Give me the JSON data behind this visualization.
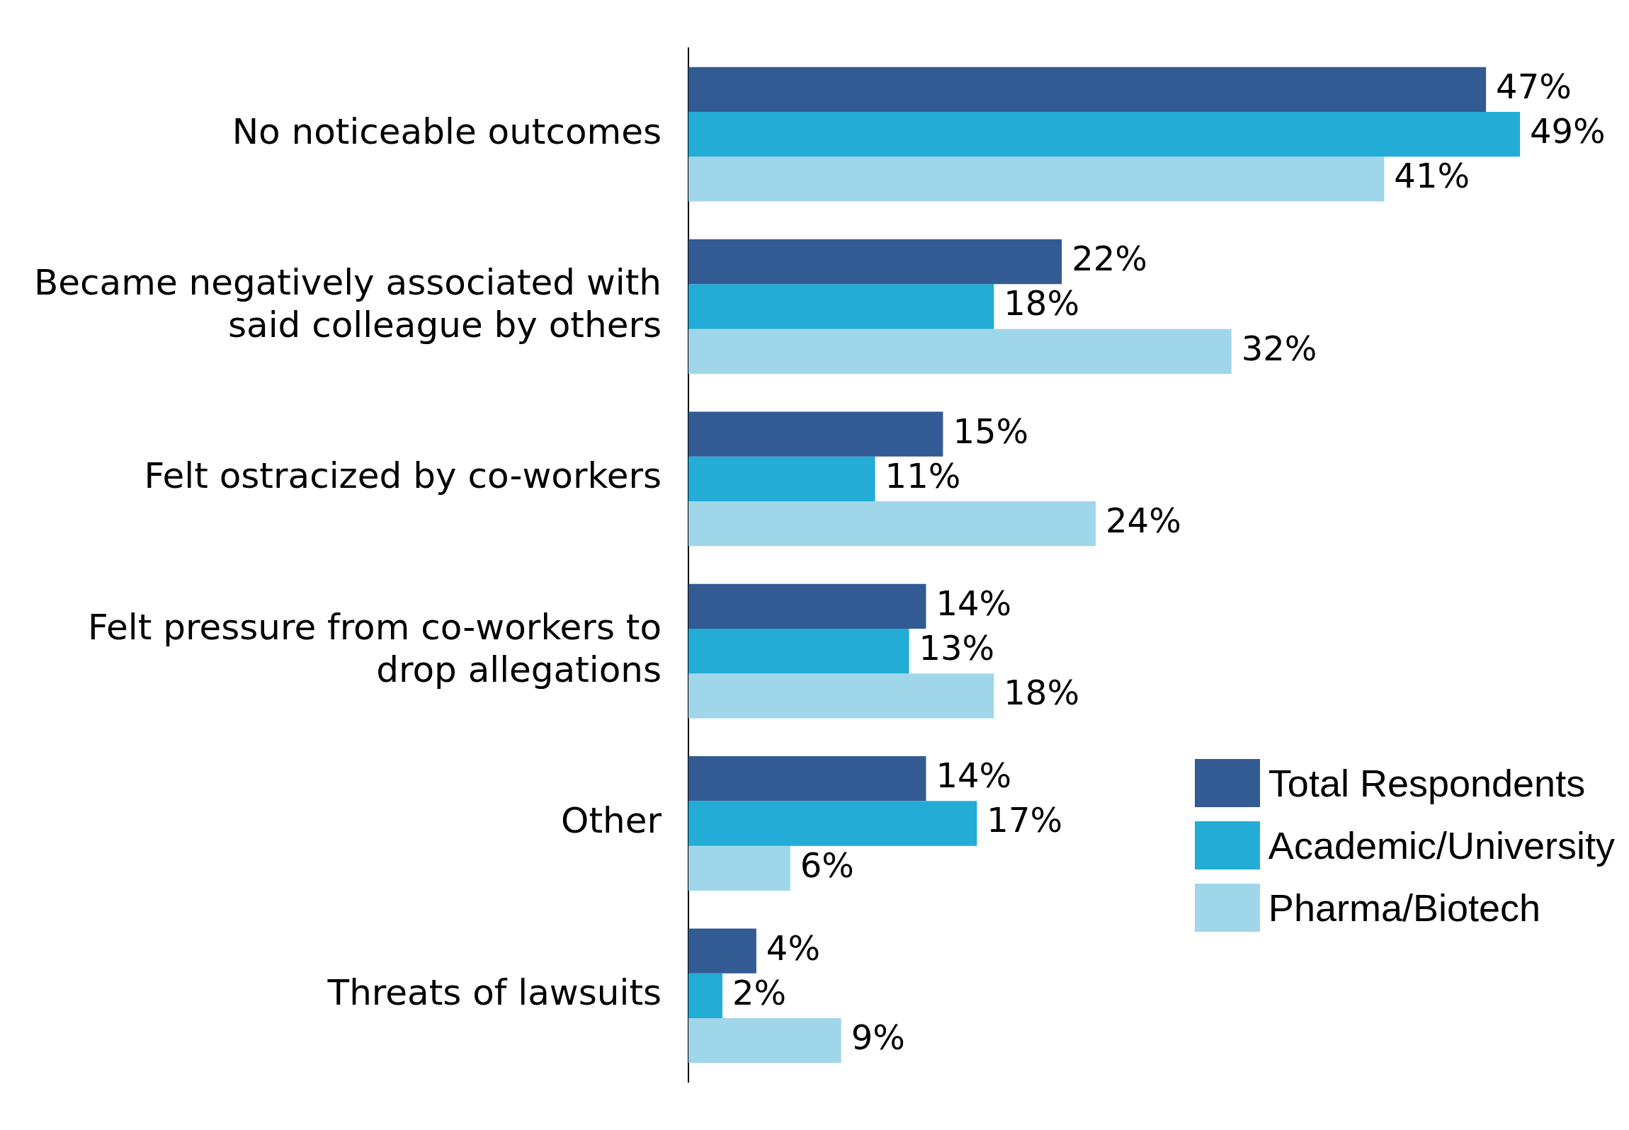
{
  "chart_data": {
    "type": "bar",
    "orientation": "horizontal",
    "categories": [
      "No noticeable outcomes",
      "Became negatively associated with said colleague by others",
      "Felt ostracized by co-workers",
      "Felt pressure from co-workers to drop allegations",
      "Other",
      "Threats of lawsuits"
    ],
    "series": [
      {
        "name": "Total Respondents",
        "color": "#325a93",
        "values": [
          47,
          22,
          15,
          14,
          14,
          4
        ],
        "value_labels": [
          "47%",
          "22%",
          "15%",
          "14%",
          "14%",
          "4%"
        ]
      },
      {
        "name": "Academic/University",
        "color": "#22acd6",
        "values": [
          49,
          18,
          11,
          13,
          17,
          2
        ],
        "value_labels": [
          "49%",
          "18%",
          "11%",
          "13%",
          "17%",
          "2%"
        ]
      },
      {
        "name": "Pharma/Biotech",
        "color": "#9fd6ea",
        "values": [
          41,
          32,
          24,
          18,
          6,
          9
        ],
        "value_labels": [
          "41%",
          "32%",
          "24%",
          "18%",
          "6%",
          "9%"
        ]
      }
    ],
    "legend": "bottom right"
  }
}
